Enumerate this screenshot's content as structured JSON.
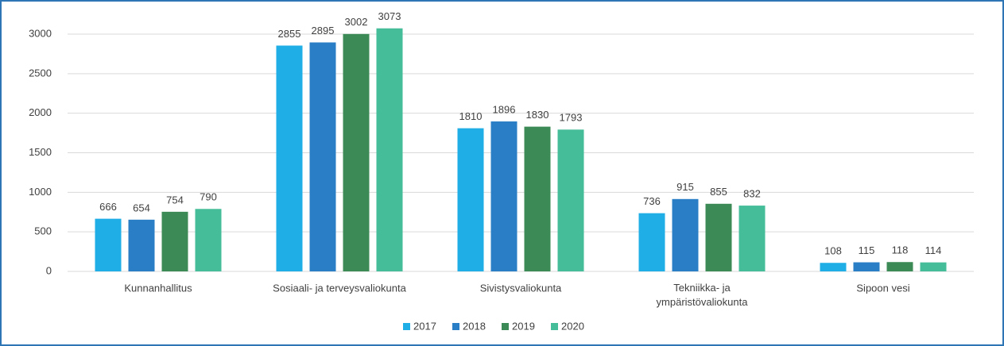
{
  "chart_data": {
    "type": "bar",
    "categories": [
      "Kunnanhallitus",
      "Sosiaali- ja terveysvaliokunta",
      "Sivistysvaliokunta",
      "Tekniikka- ja ympäristövaliokunta",
      "Sipoon vesi"
    ],
    "series": [
      {
        "name": "2017",
        "color": "#1faee6",
        "values": [
          666,
          2855,
          1810,
          736,
          108
        ]
      },
      {
        "name": "2018",
        "color": "#2a7ec6",
        "values": [
          654,
          2895,
          1896,
          915,
          115
        ]
      },
      {
        "name": "2019",
        "color": "#3c8a55",
        "values": [
          754,
          3002,
          1830,
          855,
          118
        ]
      },
      {
        "name": "2020",
        "color": "#45bd98",
        "values": [
          790,
          3073,
          1793,
          832,
          114
        ]
      }
    ],
    "ylim": [
      0,
      3000
    ],
    "yticks": [
      0,
      500,
      1000,
      1500,
      2000,
      2500,
      3000
    ],
    "grid": true,
    "legend": "bottom"
  }
}
